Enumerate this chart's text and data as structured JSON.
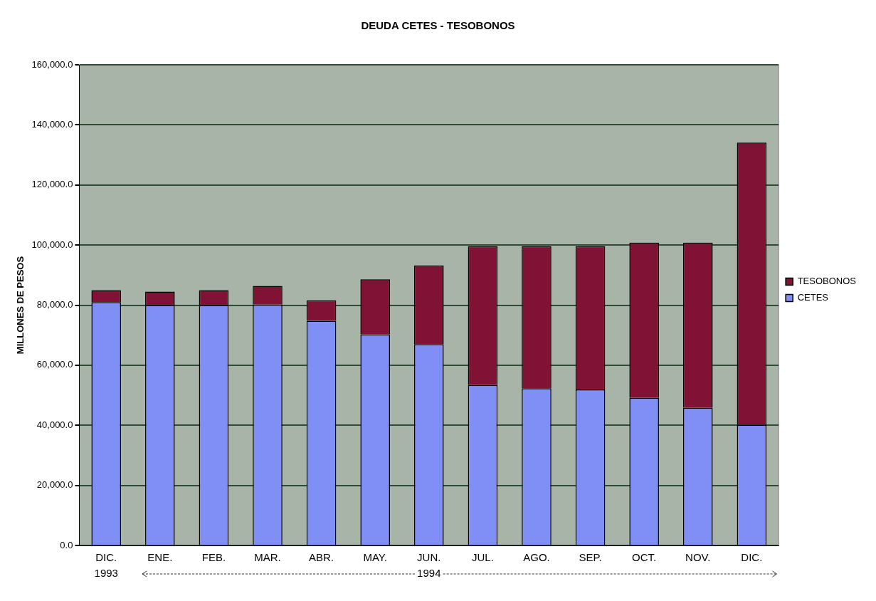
{
  "chart_data": {
    "type": "bar",
    "stacked": true,
    "title": "DEUDA CETES - TESOBONOS",
    "ylabel": "MILLONES DE PESOS",
    "categories": [
      "DIC.",
      "ENE.",
      "FEB.",
      "MAR.",
      "ABR.",
      "MAY.",
      "JUN.",
      "JUL.",
      "AGO.",
      "SEP.",
      "OCT.",
      "NOV.",
      "DIC."
    ],
    "series": [
      {
        "name": "CETES",
        "color": "#7f8ff5",
        "values": [
          81000,
          80000,
          80000,
          80200,
          74800,
          70300,
          67000,
          53400,
          52300,
          51900,
          49100,
          45800,
          40200
        ]
      },
      {
        "name": "TESOBONOS",
        "color": "#7f1235",
        "values": [
          4000,
          4500,
          5000,
          6200,
          6800,
          18300,
          26200,
          46200,
          47300,
          47700,
          51700,
          55000,
          93900
        ]
      }
    ],
    "ylim": [
      0,
      160000
    ],
    "yticks": [
      {
        "value": 0,
        "label": "0.0"
      },
      {
        "value": 20000,
        "label": "20,000.0"
      },
      {
        "value": 40000,
        "label": "40,000.0"
      },
      {
        "value": 60000,
        "label": "60,000.0"
      },
      {
        "value": 80000,
        "label": "80,000.0"
      },
      {
        "value": 100000,
        "label": "100,000.0"
      },
      {
        "value": 120000,
        "label": "120,000.0"
      },
      {
        "value": 140000,
        "label": "140,000.0"
      },
      {
        "value": 160000,
        "label": "160,000.0"
      }
    ],
    "grid": "y",
    "legend": "right",
    "annotations": [
      "1993",
      "1994"
    ]
  }
}
